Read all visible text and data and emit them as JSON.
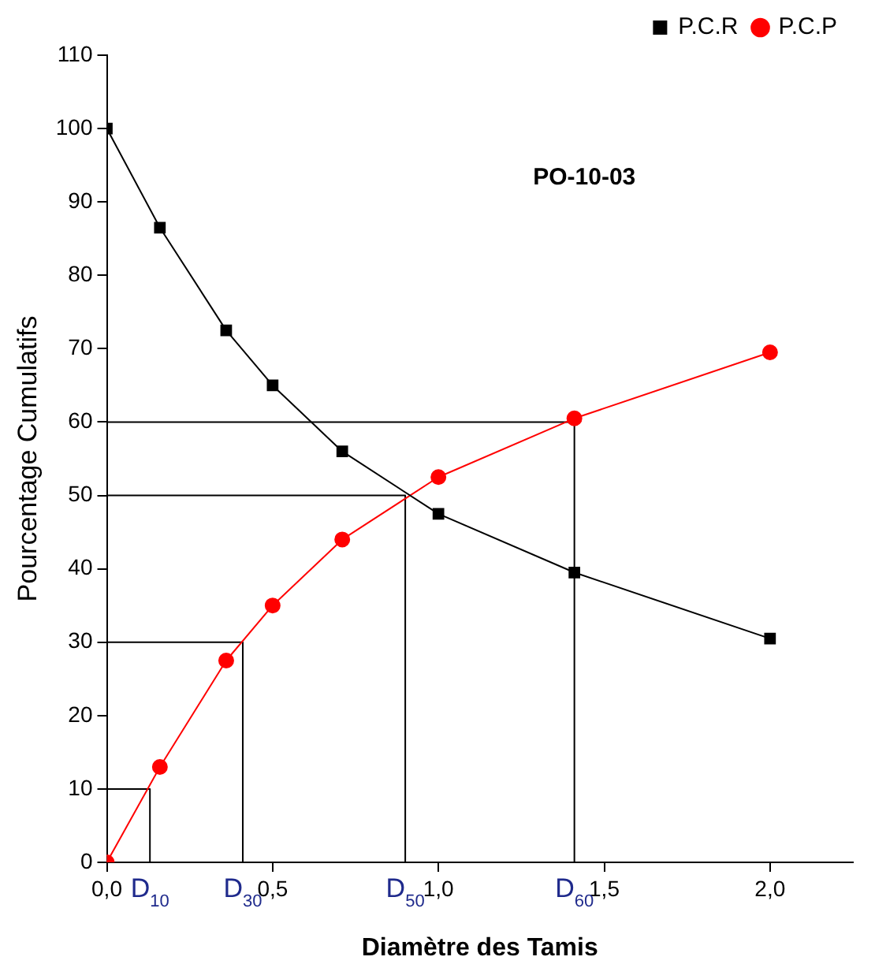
{
  "chart_data": {
    "type": "line",
    "title": "PO-10-03",
    "xlabel": "Diamètre des Tamis",
    "ylabel": "Pourcentage Cumulatifs",
    "series": [
      {
        "name": "P.C.R",
        "color": "#000000",
        "marker": "square",
        "x": [
          0,
          0.16,
          0.36,
          0.5,
          0.71,
          1.0,
          1.41,
          2.0
        ],
        "values": [
          100,
          86.5,
          72.5,
          65,
          56,
          47.5,
          39.5,
          30.5
        ]
      },
      {
        "name": "P.C.P",
        "color": "#ff0000",
        "marker": "circle",
        "x": [
          0,
          0.16,
          0.36,
          0.5,
          0.71,
          1.0,
          1.41,
          2.0
        ],
        "values": [
          0,
          13,
          27.5,
          35,
          44,
          52.5,
          60.5,
          69.5
        ]
      },
      {
        "color": "#000000",
        "marker": "none",
        "x": [
          0,
          0.13,
          0.13
        ],
        "values": [
          10,
          10,
          0
        ]
      },
      {
        "color": "#000000",
        "marker": "none",
        "x": [
          0,
          0.41,
          0.41
        ],
        "values": [
          30,
          30,
          0
        ]
      },
      {
        "color": "#000000",
        "marker": "none",
        "x": [
          0,
          0.9,
          0.9
        ],
        "values": [
          50,
          50,
          0
        ]
      },
      {
        "color": "#000000",
        "marker": "none",
        "x": [
          0,
          1.41,
          1.41
        ],
        "values": [
          60,
          60,
          0
        ]
      }
    ],
    "annotations": [
      {
        "text": "D$_{10}$",
        "x": 0.13,
        "y": 0
      },
      {
        "text": "D$_{30}$",
        "x": 0.41,
        "y": 0
      },
      {
        "text": "D$_{50}$",
        "x": 0.9,
        "y": 0
      },
      {
        "text": "D$_{60}$",
        "x": 1.41,
        "y": 0
      }
    ],
    "xlim": [
      0,
      2.25
    ],
    "xticks": [
      {
        "value": 0,
        "label": "0,0"
      },
      {
        "value": 0.5,
        "label": "0,5"
      },
      {
        "value": 1,
        "label": "1,0"
      },
      {
        "value": 1.5,
        "label": "1,5"
      },
      {
        "value": 2,
        "label": "2,0"
      }
    ],
    "ylim": [
      0,
      110
    ],
    "yticks": [
      0,
      10,
      20,
      30,
      40,
      50,
      60,
      70,
      80,
      90,
      100,
      110
    ],
    "grid": false,
    "legend": "top right"
  }
}
